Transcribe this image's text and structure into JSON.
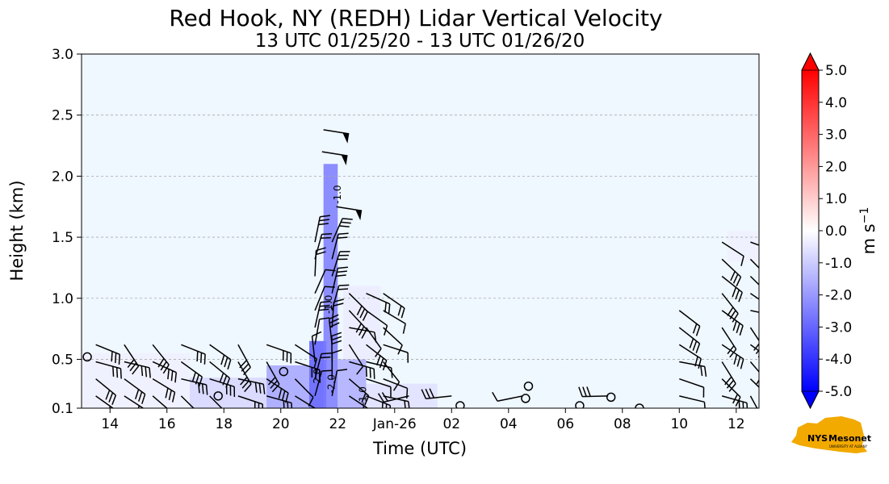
{
  "chart_data": {
    "type": "heatmap",
    "title": "Red Hook, NY (REDH) Lidar Vertical Velocity",
    "subtitle": "13 UTC 01/25/20 - 13 UTC 01/26/20",
    "xlabel": "Time (UTC)",
    "ylabel": "Height (km)",
    "x_ticks": [
      {
        "hour": 14,
        "label": "14"
      },
      {
        "hour": 16,
        "label": "16"
      },
      {
        "hour": 18,
        "label": "18"
      },
      {
        "hour": 20,
        "label": "20"
      },
      {
        "hour": 22,
        "label": "22"
      },
      {
        "hour": 24,
        "label": "Jan-26"
      },
      {
        "hour": 26,
        "label": "02"
      },
      {
        "hour": 28,
        "label": "04"
      },
      {
        "hour": 30,
        "label": "06"
      },
      {
        "hour": 32,
        "label": "08"
      },
      {
        "hour": 34,
        "label": "10"
      },
      {
        "hour": 36,
        "label": "12"
      }
    ],
    "xlim": [
      13,
      36.8
    ],
    "ylim": [
      0.1,
      3.0
    ],
    "y_ticks": [
      "0.1",
      "0.5",
      "1.0",
      "1.5",
      "2.0",
      "2.5",
      "3.0"
    ],
    "y_tick_values": [
      0.1,
      0.5,
      1.0,
      1.5,
      2.0,
      2.5,
      3.0
    ],
    "grid": "horizontal dashed",
    "colorbar": {
      "label": "m s",
      "label_sup": "−1",
      "range": [
        -5,
        5
      ],
      "tick_values": [
        5,
        4,
        3,
        2,
        1,
        0,
        -1,
        -2,
        -3,
        -4,
        -5
      ],
      "tick_labels": [
        "5.0",
        "4.0",
        "3.0",
        "2.0",
        "1.0",
        "0.0",
        "-1.0",
        "-2.0",
        "-3.0",
        "-4.0",
        "-5.0"
      ],
      "colors": {
        "max": "#ff0000",
        "mid": "#ffffff",
        "min": "#0000ff"
      }
    },
    "regions": [
      {
        "t0": 16.8,
        "t1": 19.5,
        "h0": 0.1,
        "h1": 0.35,
        "w": -0.8
      },
      {
        "t0": 19.5,
        "t1": 21.0,
        "h0": 0.1,
        "h1": 0.45,
        "w": -1.8
      },
      {
        "t0": 21.0,
        "t1": 21.6,
        "h0": 0.1,
        "h1": 0.65,
        "w": -3.2
      },
      {
        "t0": 21.5,
        "t1": 22.0,
        "h0": 0.1,
        "h1": 2.1,
        "w": -2.6
      },
      {
        "t0": 22.0,
        "t1": 23.0,
        "h0": 0.1,
        "h1": 0.5,
        "w": -1.6
      },
      {
        "t0": 23.0,
        "t1": 25.5,
        "h0": 0.1,
        "h1": 0.3,
        "w": -0.6
      },
      {
        "t0": 13.0,
        "t1": 16.8,
        "h0": 0.1,
        "h1": 0.55,
        "w": -0.3
      },
      {
        "t0": 22.2,
        "t1": 23.5,
        "h0": 0.5,
        "h1": 1.1,
        "w": -0.4
      },
      {
        "t0": 35.7,
        "t1": 36.8,
        "h0": 1.3,
        "h1": 1.55,
        "w": -0.3
      }
    ],
    "contour_labels": [
      "-2.0",
      "-1.0",
      "-1.0",
      "-2.0",
      "-1.0"
    ],
    "contour_label_points": [
      {
        "t": 21.4,
        "h": 0.35
      },
      {
        "t": 21.8,
        "h": 0.95
      },
      {
        "t": 22.1,
        "h": 1.85
      },
      {
        "t": 21.9,
        "h": 0.3
      },
      {
        "t": 23.0,
        "h": 0.2
      }
    ],
    "wind_barbs_times": [
      13.5,
      14.5,
      15.5,
      16.5,
      17.5,
      18.5,
      19.5,
      20.5,
      21.2,
      21.8,
      22.4,
      23.0,
      23.6,
      24.5,
      26,
      28.5,
      31.5,
      34.0,
      35.5,
      36.5
    ]
  },
  "logo": {
    "text": "NYS Mesonet",
    "subtext": "UNIVERSITY AT ALBANY",
    "colors": {
      "state": "#f2a900",
      "text": "#46166b"
    }
  }
}
